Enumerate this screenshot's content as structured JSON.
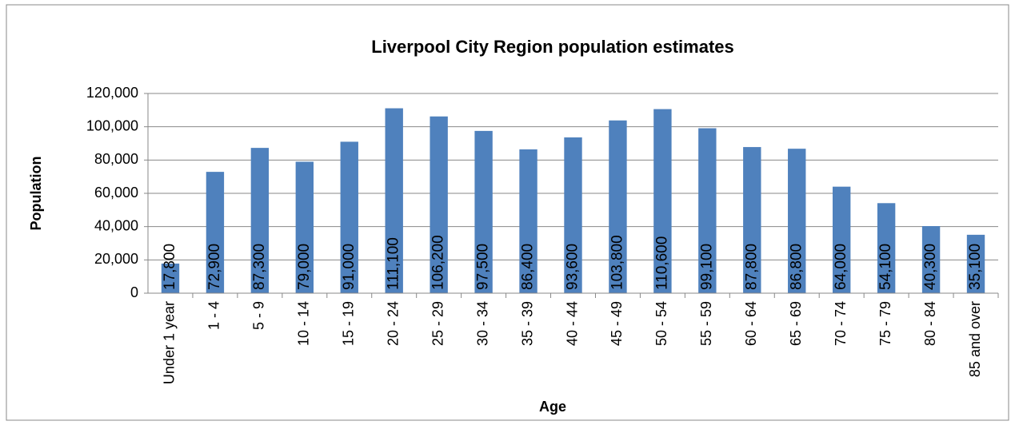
{
  "chart_data": {
    "type": "bar",
    "title": "Liverpool City Region population estimates",
    "x_label": "Age",
    "y_label": "Population",
    "categories": [
      "Under 1 year",
      "1 - 4",
      "5 - 9",
      "10 - 14",
      "15 - 19",
      "20 - 24",
      "25 - 29",
      "30 - 34",
      "35 - 39",
      "40 - 44",
      "45 - 49",
      "50 - 54",
      "55 - 59",
      "60 - 64",
      "65 - 69",
      "70 - 74",
      "75 - 79",
      "80 - 84",
      "85 and over"
    ],
    "values": [
      17800,
      72900,
      87300,
      79000,
      91000,
      111100,
      106200,
      97500,
      86400,
      93600,
      103800,
      110600,
      99100,
      87800,
      86800,
      64000,
      54100,
      40300,
      35100
    ],
    "value_labels": [
      "17,800",
      "72,900",
      "87,300",
      "79,000",
      "91,000",
      "111,100",
      "106,200",
      "97,500",
      "86,400",
      "93,600",
      "103,800",
      "110,600",
      "99,100",
      "87,800",
      "86,800",
      "64,000",
      "54,100",
      "40,300",
      "35,100"
    ],
    "color": "#4f81bd",
    "ylim": [
      0,
      120000
    ],
    "yticks": [
      0,
      {
        "value": 20000,
        "label": "20,000"
      },
      {
        "value": 40000,
        "label": "40,000"
      },
      {
        "value": 60000,
        "label": "60,000"
      },
      {
        "value": 80000,
        "label": "80,000"
      },
      {
        "value": 100000,
        "label": "100,000"
      },
      {
        "value": 120000,
        "label": "120,000"
      }
    ],
    "grid": true
  }
}
